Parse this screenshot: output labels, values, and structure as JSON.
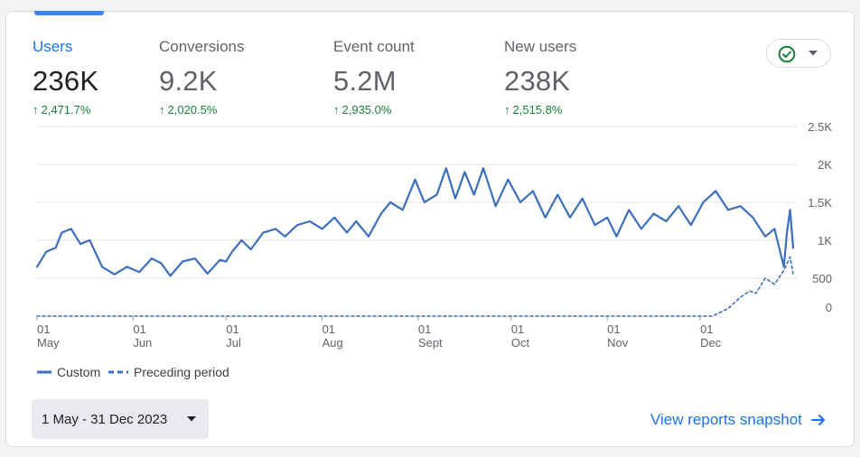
{
  "metrics": [
    {
      "name": "Users",
      "value": "236K",
      "change": "2,471.7%"
    },
    {
      "name": "Conversions",
      "value": "9.2K",
      "change": "2,020.5%"
    },
    {
      "name": "Event count",
      "value": "5.2M",
      "change": "2,935.0%"
    },
    {
      "name": "New users",
      "value": "238K",
      "change": "2,515.8%"
    }
  ],
  "colors": {
    "primary": "#1a73e8",
    "series_custom": "#3c6fbd",
    "series_preceding": "#3c6fbd",
    "positive": "#188038",
    "status_check": "#188038"
  },
  "icons": {
    "status": "check-circle-icon",
    "dropdown": "caret-down-icon",
    "link": "arrow-right-icon",
    "change": "arrow-up-icon"
  },
  "legend": {
    "custom": "Custom",
    "preceding": "Preceding period"
  },
  "date_range": {
    "label": "1 May - 31 Dec 2023"
  },
  "view_link": {
    "label": "View reports snapshot"
  },
  "chart_data": {
    "type": "line",
    "x_start": "2023-05-01",
    "x_end": "2023-12-31",
    "y_ticks": [
      "0",
      "500",
      "1K",
      "1.5K",
      "2K",
      "2.5K"
    ],
    "y_tick_values": [
      0,
      500,
      1000,
      1500,
      2000,
      2500
    ],
    "ylim": [
      0,
      2500
    ],
    "x_ticks": [
      {
        "day": "01",
        "month": "May",
        "date": "2023-05-01"
      },
      {
        "day": "01",
        "month": "Jun",
        "date": "2023-06-01"
      },
      {
        "day": "01",
        "month": "Jul",
        "date": "2023-07-01"
      },
      {
        "day": "01",
        "month": "Aug",
        "date": "2023-08-01"
      },
      {
        "day": "01",
        "month": "Sept",
        "date": "2023-09-01"
      },
      {
        "day": "01",
        "month": "Oct",
        "date": "2023-10-01"
      },
      {
        "day": "01",
        "month": "Nov",
        "date": "2023-11-01"
      },
      {
        "day": "01",
        "month": "Dec",
        "date": "2023-12-01"
      }
    ],
    "grid": true,
    "legend_position": "bottom-left",
    "series": [
      {
        "name": "Custom",
        "style": "solid",
        "points": [
          [
            "2023-05-01",
            650
          ],
          [
            "2023-05-04",
            850
          ],
          [
            "2023-05-07",
            900
          ],
          [
            "2023-05-09",
            1100
          ],
          [
            "2023-05-12",
            1150
          ],
          [
            "2023-05-15",
            950
          ],
          [
            "2023-05-18",
            1000
          ],
          [
            "2023-05-22",
            650
          ],
          [
            "2023-05-26",
            550
          ],
          [
            "2023-05-30",
            650
          ],
          [
            "2023-06-03",
            580
          ],
          [
            "2023-06-07",
            760
          ],
          [
            "2023-06-10",
            700
          ],
          [
            "2023-06-13",
            530
          ],
          [
            "2023-06-17",
            720
          ],
          [
            "2023-06-21",
            760
          ],
          [
            "2023-06-25",
            560
          ],
          [
            "2023-06-29",
            740
          ],
          [
            "2023-07-01",
            720
          ],
          [
            "2023-07-03",
            850
          ],
          [
            "2023-07-06",
            1000
          ],
          [
            "2023-07-09",
            880
          ],
          [
            "2023-07-13",
            1100
          ],
          [
            "2023-07-17",
            1150
          ],
          [
            "2023-07-20",
            1050
          ],
          [
            "2023-07-24",
            1200
          ],
          [
            "2023-07-28",
            1250
          ],
          [
            "2023-08-01",
            1150
          ],
          [
            "2023-08-05",
            1300
          ],
          [
            "2023-08-09",
            1100
          ],
          [
            "2023-08-12",
            1250
          ],
          [
            "2023-08-16",
            1050
          ],
          [
            "2023-08-20",
            1350
          ],
          [
            "2023-08-23",
            1500
          ],
          [
            "2023-08-27",
            1400
          ],
          [
            "2023-08-31",
            1800
          ],
          [
            "2023-09-03",
            1500
          ],
          [
            "2023-09-07",
            1600
          ],
          [
            "2023-09-10",
            1950
          ],
          [
            "2023-09-13",
            1550
          ],
          [
            "2023-09-16",
            1900
          ],
          [
            "2023-09-19",
            1600
          ],
          [
            "2023-09-22",
            1950
          ],
          [
            "2023-09-26",
            1450
          ],
          [
            "2023-09-30",
            1800
          ],
          [
            "2023-10-04",
            1500
          ],
          [
            "2023-10-08",
            1650
          ],
          [
            "2023-10-12",
            1300
          ],
          [
            "2023-10-16",
            1600
          ],
          [
            "2023-10-20",
            1300
          ],
          [
            "2023-10-24",
            1550
          ],
          [
            "2023-10-28",
            1200
          ],
          [
            "2023-11-01",
            1300
          ],
          [
            "2023-11-04",
            1050
          ],
          [
            "2023-11-08",
            1400
          ],
          [
            "2023-11-12",
            1150
          ],
          [
            "2023-11-16",
            1350
          ],
          [
            "2023-11-20",
            1250
          ],
          [
            "2023-11-24",
            1450
          ],
          [
            "2023-11-28",
            1200
          ],
          [
            "2023-12-02",
            1500
          ],
          [
            "2023-12-06",
            1650
          ],
          [
            "2023-12-10",
            1400
          ],
          [
            "2023-12-14",
            1450
          ],
          [
            "2023-12-18",
            1300
          ],
          [
            "2023-12-22",
            1050
          ],
          [
            "2023-12-25",
            1150
          ],
          [
            "2023-12-28",
            650
          ],
          [
            "2023-12-29",
            1100
          ],
          [
            "2023-12-30",
            1400
          ],
          [
            "2023-12-31",
            900
          ]
        ]
      },
      {
        "name": "Preceding period",
        "style": "dashed",
        "points": [
          [
            "2023-05-01",
            0
          ],
          [
            "2023-12-05",
            0
          ],
          [
            "2023-12-10",
            100
          ],
          [
            "2023-12-14",
            250
          ],
          [
            "2023-12-17",
            330
          ],
          [
            "2023-12-19",
            300
          ],
          [
            "2023-12-22",
            500
          ],
          [
            "2023-12-25",
            420
          ],
          [
            "2023-12-28",
            600
          ],
          [
            "2023-12-30",
            780
          ],
          [
            "2023-12-31",
            560
          ]
        ]
      }
    ]
  }
}
